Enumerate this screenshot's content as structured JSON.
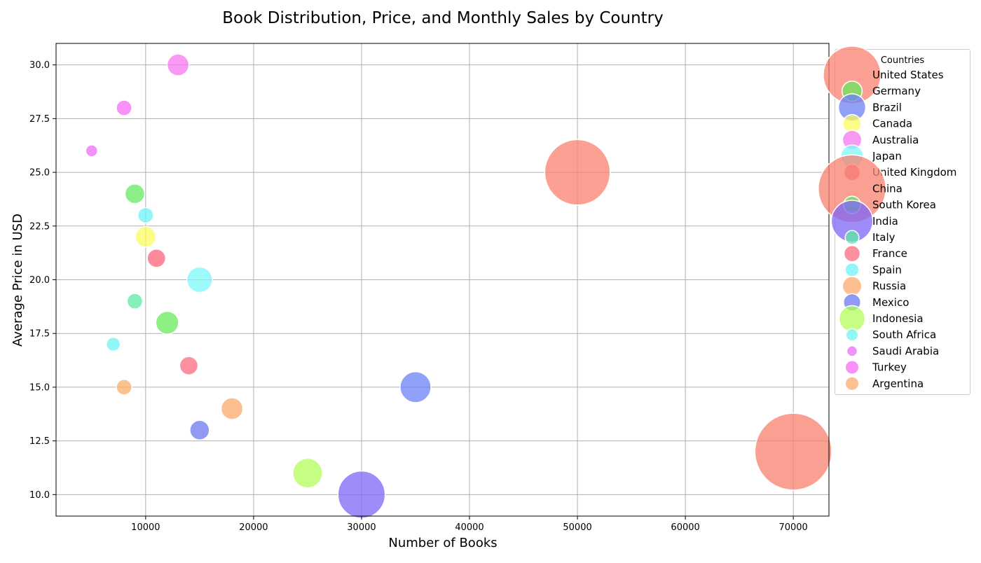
{
  "chart_data": {
    "type": "scatter",
    "title": "Book Distribution, Price, and Monthly Sales by Country",
    "xlabel": "Number of Books",
    "ylabel": "Average Price in USD",
    "xlim": [
      1700,
      73300
    ],
    "ylim": [
      9.0,
      31.0
    ],
    "x_ticks": [
      10000,
      20000,
      30000,
      40000,
      50000,
      60000,
      70000
    ],
    "y_ticks": [
      10.0,
      12.5,
      15.0,
      17.5,
      20.0,
      22.5,
      25.0,
      27.5,
      30.0
    ],
    "grid": true,
    "legend_title": "Countries",
    "legend_placement": "outside right, top",
    "series": [
      {
        "name": "United States",
        "x": 50000,
        "y": 25,
        "size": 100,
        "color": "#f9806f"
      },
      {
        "name": "Germany",
        "x": 12000,
        "y": 18,
        "size": 10,
        "color": "#67ea5b"
      },
      {
        "name": "Brazil",
        "x": 35000,
        "y": 15,
        "size": 20,
        "color": "#6b81f4"
      },
      {
        "name": "Canada",
        "x": 10000,
        "y": 22,
        "size": 8,
        "color": "#fbfb5d"
      },
      {
        "name": "Australia",
        "x": 13000,
        "y": 30,
        "size": 9,
        "color": "#f678ef"
      },
      {
        "name": "Japan",
        "x": 15000,
        "y": 20,
        "size": 13,
        "color": "#7df8f8"
      },
      {
        "name": "United Kingdom",
        "x": 11000,
        "y": 21,
        "size": 6,
        "color": "#fb6378"
      },
      {
        "name": "China",
        "x": 70000,
        "y": 12,
        "size": 140,
        "color": "#f7806f"
      },
      {
        "name": "South Korea",
        "x": 9000,
        "y": 24,
        "size": 7,
        "color": "#66e860"
      },
      {
        "name": "India",
        "x": 30000,
        "y": 10,
        "size": 50,
        "color": "#7e66f6"
      },
      {
        "name": "Italy",
        "x": 9000,
        "y": 19,
        "size": 4,
        "color": "#5de8a3"
      },
      {
        "name": "France",
        "x": 14000,
        "y": 16,
        "size": 6,
        "color": "#fc6b7d"
      },
      {
        "name": "Spain",
        "x": 10000,
        "y": 23,
        "size": 4,
        "color": "#6df1f8"
      },
      {
        "name": "Russia",
        "x": 18000,
        "y": 14,
        "size": 9,
        "color": "#fca86b"
      },
      {
        "name": "Mexico",
        "x": 15000,
        "y": 13,
        "size": 7,
        "color": "#6b78ef"
      },
      {
        "name": "Indonesia",
        "x": 25000,
        "y": 11,
        "size": 18,
        "color": "#b2fd59"
      },
      {
        "name": "South Africa",
        "x": 7000,
        "y": 17,
        "size": 3,
        "color": "#6cf3f3"
      },
      {
        "name": "Saudi Arabia",
        "x": 5000,
        "y": 26,
        "size": 2,
        "color": "#ef6cf9"
      },
      {
        "name": "Turkey",
        "x": 8000,
        "y": 28,
        "size": 4,
        "color": "#f76df5"
      },
      {
        "name": "Argentina",
        "x": 8000,
        "y": 15,
        "size": 4,
        "color": "#f9ad6b"
      }
    ]
  }
}
